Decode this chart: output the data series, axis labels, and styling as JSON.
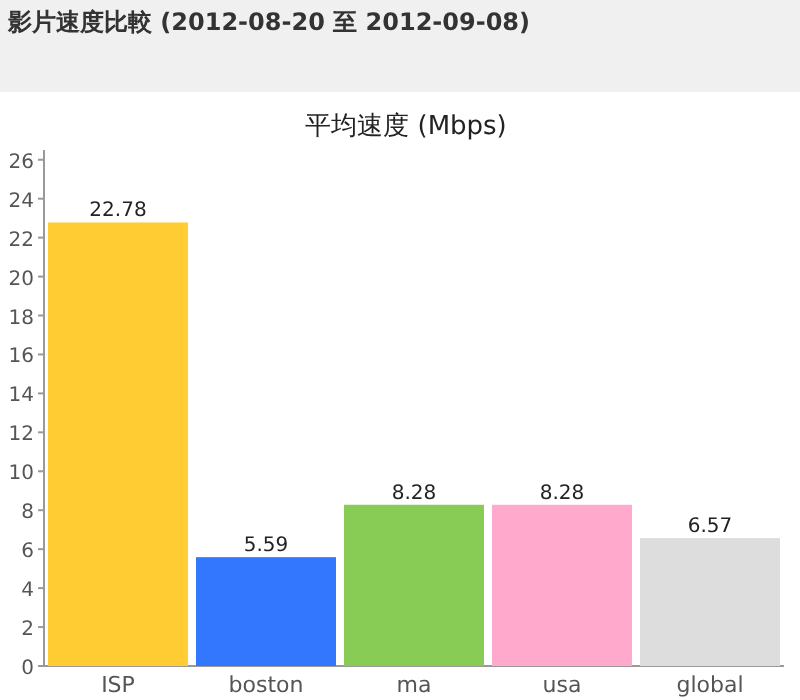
{
  "chart_data": {
    "type": "bar",
    "title": "影片速度比較 (2012-08-20 至 2012-09-08)",
    "subtitle": "平均速度 (Mbps)",
    "categories": [
      "ISP",
      "boston",
      "ma",
      "usa",
      "global"
    ],
    "values": [
      22.78,
      5.59,
      8.28,
      8.28,
      6.57
    ],
    "colors": [
      "#ffcc33",
      "#3377ff",
      "#88cc55",
      "#ffaacc",
      "#dddddd"
    ],
    "ylim": [
      0,
      26.5
    ],
    "yticks": [
      0,
      2,
      4,
      6,
      8,
      10,
      12,
      14,
      16,
      18,
      20,
      22,
      24,
      26
    ],
    "data_labels": true
  }
}
